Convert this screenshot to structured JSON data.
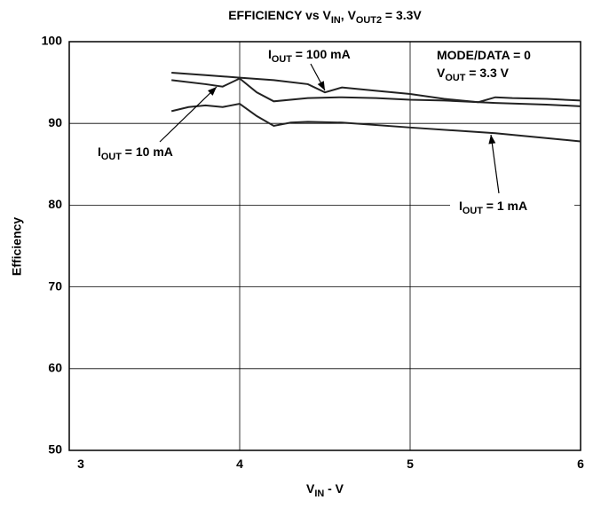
{
  "chart_data": {
    "type": "line",
    "title": [
      "EFFICIENCY vs V",
      "IN",
      ", V",
      "OUT2",
      " = 3.3V"
    ],
    "xlabel": [
      "V",
      "IN",
      " - V"
    ],
    "ylabel": "Efficiency",
    "xlim": [
      3,
      6
    ],
    "xticks": [
      3,
      4,
      5,
      6
    ],
    "ylim": [
      50,
      100
    ],
    "yticks": [
      50,
      60,
      70,
      80,
      90,
      100
    ],
    "grid": true,
    "series": [
      {
        "name": [
          "I",
          "OUT",
          " = 100 mA"
        ],
        "color": "#222222",
        "x": [
          3.6,
          3.8,
          4.0,
          4.2,
          4.4,
          4.5,
          4.6,
          4.8,
          5.0,
          5.2,
          5.4,
          5.5,
          5.6,
          5.8,
          6.0
        ],
        "values": [
          96.2,
          95.9,
          95.6,
          95.3,
          94.8,
          93.8,
          94.4,
          94.0,
          93.6,
          93.0,
          92.6,
          93.2,
          93.1,
          93.0,
          92.8
        ]
      },
      {
        "name": [
          "I",
          "OUT",
          " = 10 mA"
        ],
        "color": "#222222",
        "x": [
          3.6,
          3.8,
          3.9,
          4.0,
          4.1,
          4.2,
          4.4,
          4.6,
          4.8,
          5.0,
          5.2,
          5.5,
          5.8,
          6.0
        ],
        "values": [
          95.3,
          94.8,
          94.5,
          95.5,
          93.8,
          92.7,
          93.1,
          93.2,
          93.1,
          92.9,
          92.8,
          92.5,
          92.3,
          92.1
        ]
      },
      {
        "name": [
          "I",
          "OUT",
          " = 1 mA"
        ],
        "color": "#222222",
        "x": [
          3.6,
          3.7,
          3.8,
          3.9,
          4.0,
          4.1,
          4.2,
          4.3,
          4.4,
          4.6,
          5.0,
          5.5,
          6.0
        ],
        "values": [
          91.5,
          92.0,
          92.2,
          92.0,
          92.4,
          90.9,
          89.7,
          90.1,
          90.2,
          90.1,
          89.5,
          88.8,
          87.8
        ]
      }
    ],
    "annotations": [
      [
        "MODE/DATA = 0"
      ],
      [
        "V",
        "OUT",
        " = 3.3 V"
      ]
    ]
  }
}
